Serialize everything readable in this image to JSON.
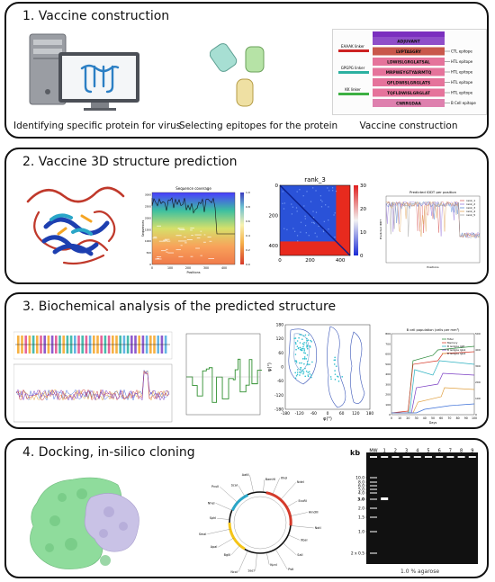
{
  "panels": [
    {
      "title": "1. Vaccine construction"
    },
    {
      "title": "2. Vaccine 3D structure prediction"
    },
    {
      "title": "3. Biochemical analysis of the predicted structure"
    },
    {
      "title": "4. Docking, in-silico cloning"
    }
  ],
  "p1": {
    "caption_protein": "Identifying specific protein for virus",
    "caption_epitopes": "Selecting epitopes for the protein",
    "caption_construct": "Vaccine construction",
    "linkers": [
      "EAAAK linker",
      "GPGPG linker",
      "KK linker"
    ],
    "rows": [
      {
        "seq": "ADJUVANT",
        "label": ""
      },
      {
        "seq": "LVPTASGRY",
        "label": "CTL epitope"
      },
      {
        "seq": "LDWISLGRGLATSAL",
        "label": "HTL epitope"
      },
      {
        "seq": "MRPWEYGTYAIRMTQ",
        "label": "HTL epitope"
      },
      {
        "seq": "QFLDWISLGRGLATS",
        "label": "HTL epitope"
      },
      {
        "seq": "TQFLDWISLGRGLAT",
        "label": "HTL epitope"
      },
      {
        "seq": "CNRRGDAA",
        "label": "B Cell epitope"
      }
    ],
    "colors": {
      "adjuvant": "#7b2fbf",
      "ctl": "#c0392b",
      "htl": "#e05a8a",
      "bcell": "#d86aa0",
      "eaaak": "#cc2222",
      "gpgpg": "#2bb0a0",
      "kk": "#3cb043"
    }
  },
  "p2": {
    "coverage_title": "Sequence coverage",
    "coverage_xlabel": "Positions",
    "coverage_ylabel": "Sequences",
    "coverage_xticks": [
      "0",
      "100",
      "200",
      "300",
      "400"
    ],
    "coverage_yticks": [
      "0",
      "500",
      "1000",
      "1500",
      "2000",
      "2500",
      "3000"
    ],
    "coverage_cbar_ticks": [
      "0.0",
      "0.2",
      "0.4",
      "0.6",
      "0.8",
      "1.0"
    ],
    "pae_title": "rank_3",
    "pae_ticks": [
      "0",
      "200",
      "400"
    ],
    "pae_cbar_ticks": [
      "0",
      "10",
      "20",
      "30"
    ],
    "plddt_title": "Predicted lDDT per position",
    "plddt_xlabel": "Positions",
    "plddt_ylabel": "Predicted lDDT",
    "plddt_legend": [
      "rank_1",
      "rank_2",
      "rank_3",
      "rank_4",
      "rank_5"
    ],
    "plddt_colors": [
      "#d95f5f",
      "#9370db",
      "#4f7fd0",
      "#e0a050",
      "#a0a0a0"
    ]
  },
  "p3": {
    "scatter_yticks": [
      "-180",
      "-120",
      "-60",
      "0",
      "60",
      "120",
      "180"
    ],
    "rama_xticks": [
      "-180",
      "-120",
      "-60",
      "0",
      "60",
      "120",
      "180"
    ],
    "rama_xlabel": "φ(°)",
    "rama_ylabel": "ψ(°)",
    "immune_title": "B cell population (cells per mm³)",
    "immune_xticks": [
      "0",
      "10",
      "20",
      "30",
      "40",
      "50",
      "60",
      "70",
      "80",
      "90",
      "100"
    ],
    "immune_xlabel": "Days",
    "immune_yticks_left": [
      "0",
      "100",
      "200",
      "300",
      "400",
      "500",
      "600",
      "700",
      "800"
    ],
    "immune_yticks_right": [
      "0",
      "100",
      "200",
      "300",
      "400",
      "500"
    ],
    "immune_legend": [
      "Total",
      "Memory",
      "B isotype IgM",
      "B isotype IgG1",
      "B isotype IgG2"
    ]
  },
  "p4": {
    "gel_kb_label": "kb",
    "gel_lanes": [
      "MW",
      "1",
      "2",
      "3",
      "4",
      "5",
      "6",
      "7",
      "8",
      "9"
    ],
    "gel_markers": [
      "10.0",
      "8.0",
      "6.0",
      "5.0",
      "4.0",
      "3.0",
      "2.0",
      "1.5",
      "1.0",
      "2 x 0.5"
    ],
    "gel_caption": "1.0 % agarose",
    "plasmid_labels": [
      "BamHI",
      "XhoI",
      "NdeI",
      "EcoRI",
      "HindIII",
      "NotI",
      "XbaI",
      "SalI",
      "PstI",
      "KpnI",
      "SacI",
      "NcoI",
      "BglII",
      "ApaI",
      "SmaI",
      "SphI",
      "NheI",
      "PvuII",
      "ScaI",
      "AatII"
    ]
  }
}
